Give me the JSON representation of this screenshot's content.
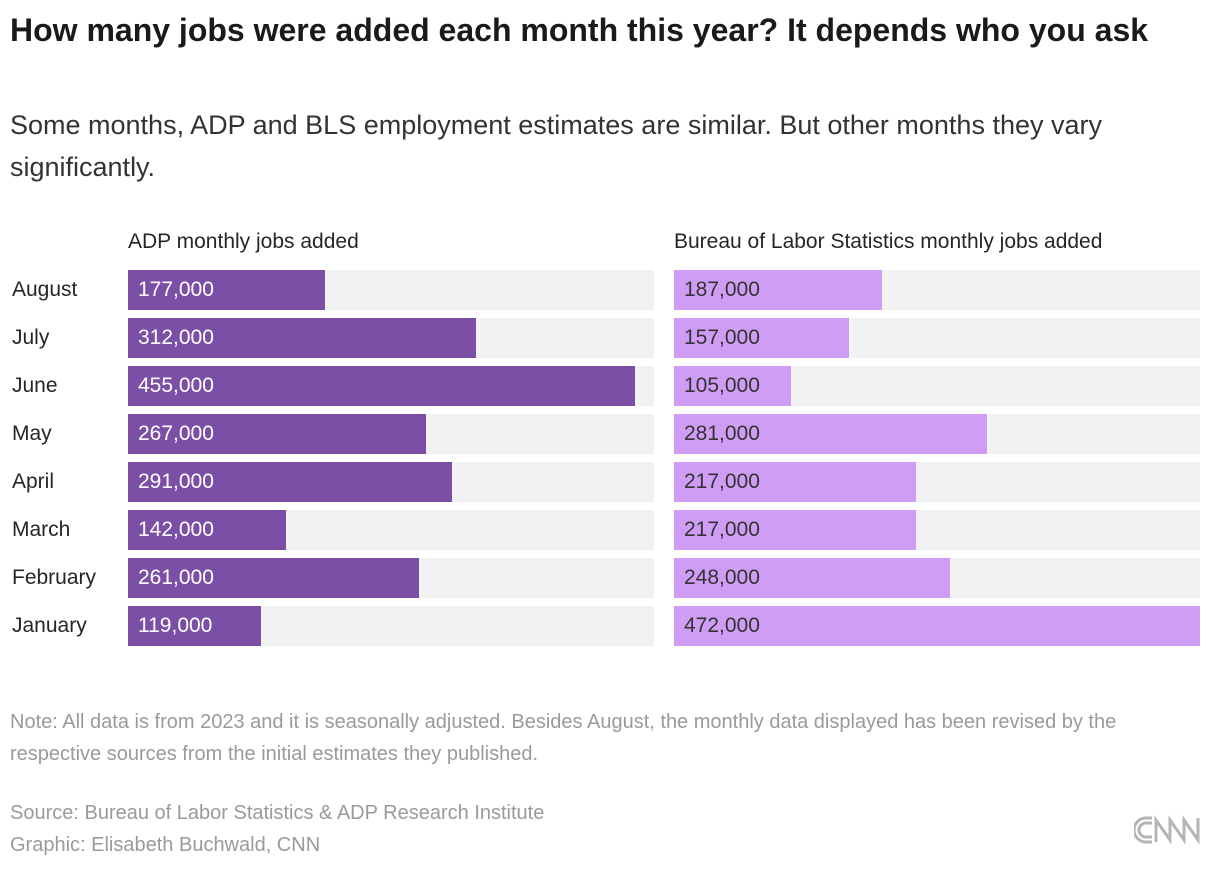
{
  "title": "How many jobs were added each month this year? It depends who you ask",
  "subtitle": "Some months, ADP and BLS employment estimates are similar. But other months they vary significantly.",
  "chart_data": [
    {
      "type": "bar",
      "orientation": "horizontal",
      "title": "ADP monthly jobs added",
      "categories": [
        "August",
        "July",
        "June",
        "May",
        "April",
        "March",
        "February",
        "January"
      ],
      "values": [
        177000,
        312000,
        455000,
        267000,
        291000,
        142000,
        261000,
        119000
      ],
      "labels": [
        "177,000",
        "312,000",
        "455,000",
        "267,000",
        "291,000",
        "142,000",
        "261,000",
        "119,000"
      ],
      "xlim": [
        0,
        472000
      ],
      "color": "#7b4fa6",
      "label_color": "#ffffff"
    },
    {
      "type": "bar",
      "orientation": "horizontal",
      "title": "Bureau of Labor Statistics monthly jobs added",
      "categories": [
        "August",
        "July",
        "June",
        "May",
        "April",
        "March",
        "February",
        "January"
      ],
      "values": [
        187000,
        157000,
        105000,
        281000,
        217000,
        217000,
        248000,
        472000
      ],
      "labels": [
        "187,000",
        "157,000",
        "105,000",
        "281,000",
        "217,000",
        "217,000",
        "248,000",
        "472,000"
      ],
      "xlim": [
        0,
        472000
      ],
      "color": "#cf9df5",
      "label_color": "#333333"
    }
  ],
  "track_color": "#f2f2f2",
  "note": "Note: All data is from 2023 and it is seasonally adjusted. Besides August, the monthly data displayed has been revised by the respective sources from the initial estimates they published.",
  "source": "Source: Bureau of Labor Statistics & ADP Research Institute",
  "credit": "Graphic: Elisabeth Buchwald, CNN",
  "logo": "CNN"
}
